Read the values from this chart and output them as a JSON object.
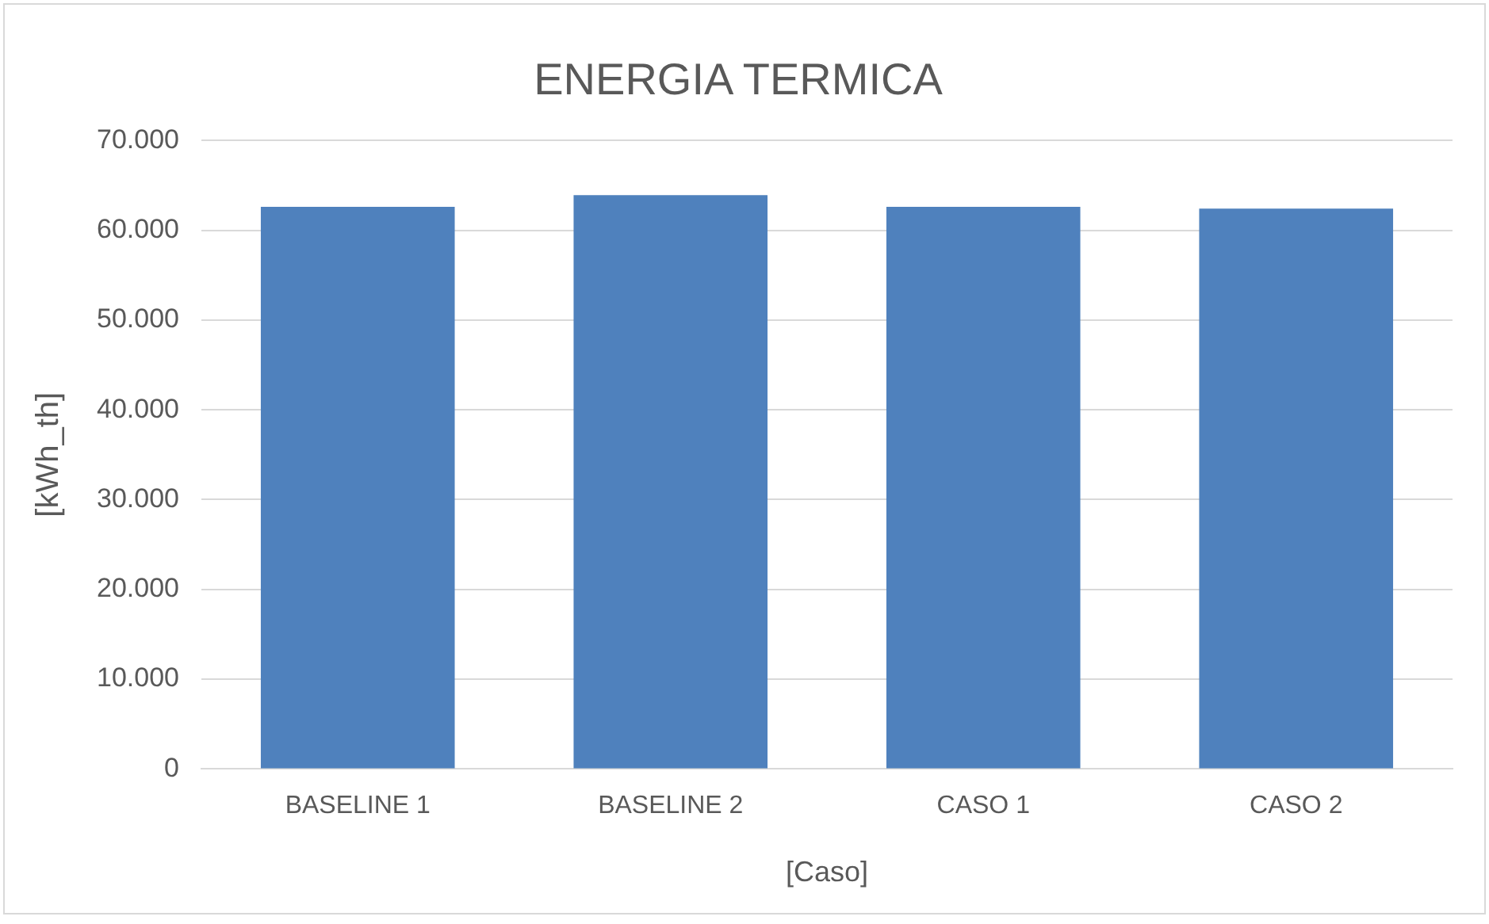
{
  "chart_data": {
    "type": "bar",
    "title": "ENERGIA TERMICA",
    "xlabel": "[Caso]",
    "ylabel": "[kWh_th]",
    "categories": [
      "BASELINE 1",
      "BASELINE 2",
      "CASO 1",
      "CASO 2"
    ],
    "values": [
      62600,
      63900,
      62600,
      62400
    ],
    "color": "#4f81bd",
    "ylim": [
      0,
      70000
    ],
    "yticks": [
      0,
      {
        "value": 10000,
        "label": "10.000"
      },
      {
        "value": 20000,
        "label": "20.000"
      },
      {
        "value": 30000,
        "label": "30.000"
      },
      {
        "value": 40000,
        "label": "40.000"
      },
      {
        "value": 50000,
        "label": "50.000"
      },
      {
        "value": 60000,
        "label": "60.000"
      },
      {
        "value": 70000,
        "label": "70.000"
      }
    ],
    "grid": "y",
    "legend": false
  }
}
